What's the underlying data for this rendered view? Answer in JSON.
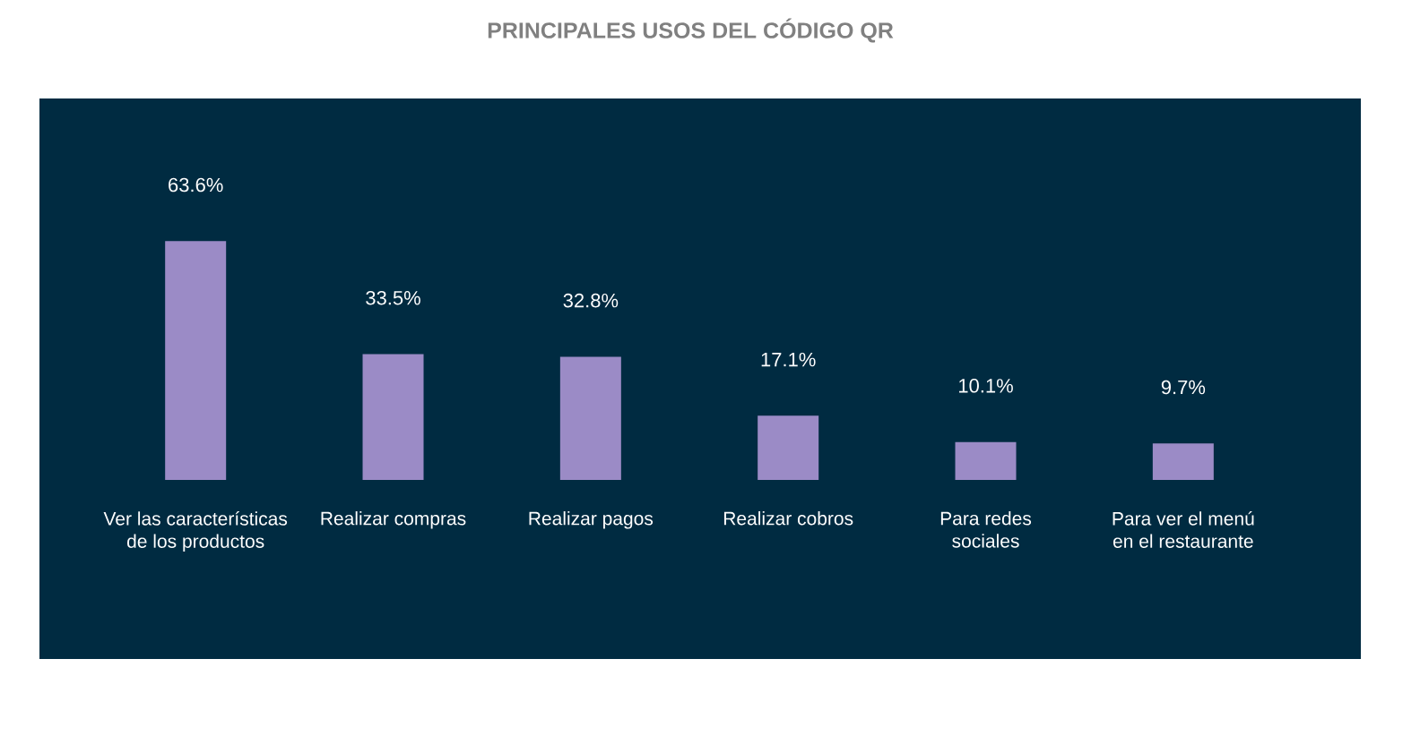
{
  "chart_data": {
    "type": "bar",
    "title": "PRINCIPALES USOS DEL CÓDIGO QR",
    "categories": [
      "Ver las características de los productos",
      "Realizar compras",
      "Realizar pagos",
      "Realizar cobros",
      "Para redes sociales",
      "Para ver el menú en el restaurante"
    ],
    "values": [
      63.6,
      33.5,
      32.8,
      17.1,
      10.1,
      9.7
    ],
    "color": "#9b8bc6",
    "value_labels": [
      "63.6%",
      "33.5%",
      "32.8%",
      "17.1%",
      "10.1%",
      "9.7%"
    ]
  }
}
